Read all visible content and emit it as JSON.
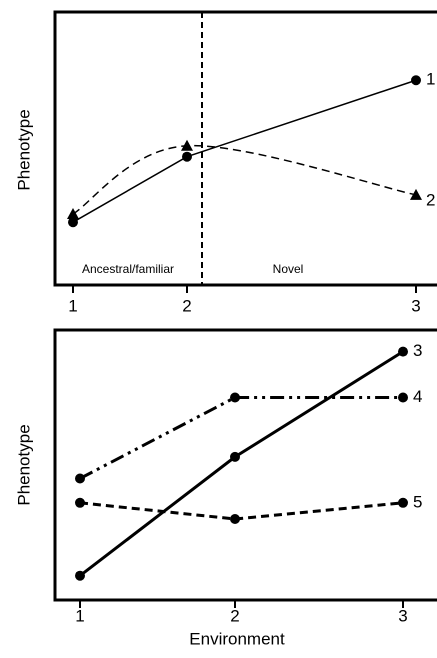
{
  "chart_data": [
    {
      "type": "line",
      "ylabel": "Phenotype",
      "categories": [
        "1",
        "2",
        "3"
      ],
      "ylim": [
        0,
        10
      ],
      "annotations": [
        "Ancestral/familiar",
        "Novel"
      ],
      "series": [
        {
          "name": "1",
          "color": "#000000",
          "style": "solid",
          "marker": "circle",
          "values": [
            2.3,
            4.7,
            7.5
          ]
        },
        {
          "name": "2",
          "color": "#000000",
          "style": "dashed",
          "marker": "triangle",
          "smooth": true,
          "values": [
            2.6,
            5.1,
            3.3
          ]
        }
      ]
    },
    {
      "type": "line",
      "ylabel": "Phenotype",
      "xlabel": "Environment",
      "categories": [
        "1",
        "2",
        "3"
      ],
      "ylim": [
        0,
        10
      ],
      "series": [
        {
          "name": "3",
          "color": "#000000",
          "style": "solid",
          "marker": "circle",
          "values": [
            0.9,
            5.3,
            9.2
          ]
        },
        {
          "name": "4",
          "color": "#000000",
          "style": "dashdot",
          "marker": "circle",
          "values": [
            4.5,
            7.5,
            7.5
          ]
        },
        {
          "name": "5",
          "color": "#000000",
          "style": "dashed",
          "marker": "circle",
          "values": [
            3.6,
            3.0,
            3.6
          ]
        }
      ]
    }
  ]
}
